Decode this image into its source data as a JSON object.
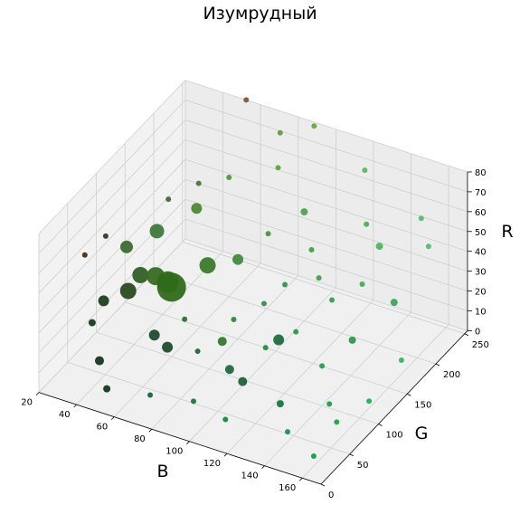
{
  "chart_data": {
    "type": "scatter",
    "projection": "3d",
    "title": "Изумрудный",
    "xlabel": "B",
    "ylabel": "G",
    "zlabel": "R",
    "xlim": [
      20,
      170
    ],
    "ylim": [
      0,
      255
    ],
    "zlim": [
      0,
      80
    ],
    "xticks": [
      "20",
      "40",
      "60",
      "80",
      "100",
      "120",
      "140",
      "160"
    ],
    "yticks": [
      "0",
      "50",
      "100",
      "150",
      "200",
      "250"
    ],
    "zticks": [
      "0",
      "10",
      "20",
      "30",
      "40",
      "50",
      "60",
      "70",
      "80"
    ],
    "grid": true,
    "marker_size_meaning": "point frequency",
    "points": [
      {
        "b": 60,
        "g": 100,
        "r": 35,
        "size": 16,
        "color": "#2f6a1a"
      },
      {
        "b": 55,
        "g": 110,
        "r": 33,
        "size": 12,
        "color": "#2f6a1a"
      },
      {
        "b": 50,
        "g": 105,
        "r": 36,
        "size": 10,
        "color": "#376d1f"
      },
      {
        "b": 45,
        "g": 95,
        "r": 38,
        "size": 9,
        "color": "#325f24"
      },
      {
        "b": 70,
        "g": 130,
        "r": 40,
        "size": 9,
        "color": "#3b7a2a"
      },
      {
        "b": 40,
        "g": 90,
        "r": 30,
        "size": 9,
        "color": "#2a4a20"
      },
      {
        "b": 40,
        "g": 140,
        "r": 45,
        "size": 8,
        "color": "#3f7a3a"
      },
      {
        "b": 30,
        "g": 120,
        "r": 40,
        "size": 7,
        "color": "#3a6b30"
      },
      {
        "b": 55,
        "g": 160,
        "r": 55,
        "size": 6,
        "color": "#4c8a30"
      },
      {
        "b": 30,
        "g": 80,
        "r": 25,
        "size": 6,
        "color": "#1f3f25"
      },
      {
        "b": 60,
        "g": 70,
        "r": 20,
        "size": 6,
        "color": "#1f4a30"
      },
      {
        "b": 70,
        "g": 60,
        "r": 20,
        "size": 6,
        "color": "#1c4d2c"
      },
      {
        "b": 80,
        "g": 150,
        "r": 40,
        "size": 6,
        "color": "#3f8a3f"
      },
      {
        "b": 120,
        "g": 90,
        "r": 30,
        "size": 6,
        "color": "#1d6b3d"
      },
      {
        "b": 100,
        "g": 70,
        "r": 15,
        "size": 5,
        "color": "#1f6a3a"
      },
      {
        "b": 110,
        "g": 60,
        "r": 15,
        "size": 5,
        "color": "#1e6238"
      },
      {
        "b": 90,
        "g": 90,
        "r": 20,
        "size": 5,
        "color": "#2d7a2a"
      },
      {
        "b": 40,
        "g": 40,
        "r": 10,
        "size": 5,
        "color": "#123820"
      },
      {
        "b": 50,
        "g": 20,
        "r": 5,
        "size": 4,
        "color": "#0d3a20"
      },
      {
        "b": 30,
        "g": 60,
        "r": 20,
        "size": 4,
        "color": "#163a22"
      },
      {
        "b": 130,
        "g": 60,
        "r": 10,
        "size": 4,
        "color": "#117a3a"
      },
      {
        "b": 150,
        "g": 120,
        "r": 30,
        "size": 4,
        "color": "#2c9a4a"
      },
      {
        "b": 160,
        "g": 160,
        "r": 40,
        "size": 4,
        "color": "#3ea856"
      },
      {
        "b": 140,
        "g": 200,
        "r": 50,
        "size": 4,
        "color": "#4cb85c"
      },
      {
        "b": 100,
        "g": 200,
        "r": 55,
        "size": 4,
        "color": "#4aa84a"
      },
      {
        "b": 80,
        "g": 220,
        "r": 65,
        "size": 3,
        "color": "#5aa83a"
      },
      {
        "b": 60,
        "g": 200,
        "r": 60,
        "size": 3,
        "color": "#4f9a34"
      },
      {
        "b": 20,
        "g": 80,
        "r": 45,
        "size": 3,
        "color": "#4a2a10"
      },
      {
        "b": 25,
        "g": 100,
        "r": 50,
        "size": 3,
        "color": "#2f3a2a"
      },
      {
        "b": 160,
        "g": 20,
        "r": 5,
        "size": 3,
        "color": "#10a040"
      },
      {
        "b": 140,
        "g": 40,
        "r": 5,
        "size": 3,
        "color": "#129a42"
      },
      {
        "b": 150,
        "g": 80,
        "r": 10,
        "size": 3,
        "color": "#1aa04a"
      },
      {
        "b": 165,
        "g": 100,
        "r": 10,
        "size": 3,
        "color": "#22b050"
      },
      {
        "b": 170,
        "g": 140,
        "r": 20,
        "size": 3,
        "color": "#30b860"
      },
      {
        "b": 160,
        "g": 220,
        "r": 50,
        "size": 3,
        "color": "#4cc070"
      },
      {
        "b": 120,
        "g": 240,
        "r": 70,
        "size": 3,
        "color": "#5cb85c"
      },
      {
        "b": 90,
        "g": 250,
        "r": 80,
        "size": 3,
        "color": "#6aa840"
      },
      {
        "b": 60,
        "g": 230,
        "r": 90,
        "size": 3,
        "color": "#7a5a3a"
      },
      {
        "b": 110,
        "g": 180,
        "r": 45,
        "size": 3,
        "color": "#40a048"
      },
      {
        "b": 130,
        "g": 150,
        "r": 35,
        "size": 3,
        "color": "#34a04c"
      },
      {
        "b": 100,
        "g": 130,
        "r": 30,
        "size": 3,
        "color": "#2e9040"
      },
      {
        "b": 90,
        "g": 110,
        "r": 25,
        "size": 3,
        "color": "#2a8a3a"
      },
      {
        "b": 70,
        "g": 90,
        "r": 25,
        "size": 3,
        "color": "#2a7030"
      },
      {
        "b": 120,
        "g": 120,
        "r": 25,
        "size": 3,
        "color": "#2a9a46"
      },
      {
        "b": 140,
        "g": 100,
        "r": 20,
        "size": 3,
        "color": "#24a04a"
      },
      {
        "b": 110,
        "g": 100,
        "r": 20,
        "size": 3,
        "color": "#268c40"
      },
      {
        "b": 80,
        "g": 80,
        "r": 15,
        "size": 3,
        "color": "#1e6a34"
      },
      {
        "b": 90,
        "g": 40,
        "r": 5,
        "size": 3,
        "color": "#157a3a"
      },
      {
        "b": 70,
        "g": 30,
        "r": 5,
        "size": 3,
        "color": "#126a34"
      },
      {
        "b": 110,
        "g": 30,
        "r": 5,
        "size": 3,
        "color": "#148a3c"
      },
      {
        "b": 120,
        "g": 160,
        "r": 40,
        "size": 3,
        "color": "#3aa44a"
      },
      {
        "b": 140,
        "g": 170,
        "r": 40,
        "size": 3,
        "color": "#3cb050"
      },
      {
        "b": 150,
        "g": 240,
        "r": 55,
        "size": 3,
        "color": "#50c070"
      },
      {
        "b": 130,
        "g": 210,
        "r": 55,
        "size": 3,
        "color": "#4ab058"
      },
      {
        "b": 90,
        "g": 170,
        "r": 50,
        "size": 3,
        "color": "#48983c"
      },
      {
        "b": 50,
        "g": 180,
        "r": 60,
        "size": 3,
        "color": "#4a7a30"
      },
      {
        "b": 40,
        "g": 160,
        "r": 55,
        "size": 3,
        "color": "#3e6a2e"
      },
      {
        "b": 75,
        "g": 240,
        "r": 75,
        "size": 3,
        "color": "#60a040"
      },
      {
        "b": 105,
        "g": 150,
        "r": 35,
        "size": 3,
        "color": "#339444"
      },
      {
        "b": 160,
        "g": 60,
        "r": 10,
        "size": 3,
        "color": "#18a848"
      }
    ]
  }
}
